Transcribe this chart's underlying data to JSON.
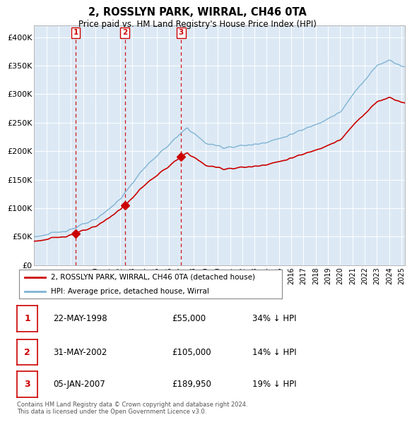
{
  "title": "2, ROSSLYN PARK, WIRRAL, CH46 0TA",
  "subtitle": "Price paid vs. HM Land Registry's House Price Index (HPI)",
  "ylabel_ticks": [
    "£0",
    "£50K",
    "£100K",
    "£150K",
    "£200K",
    "£250K",
    "£300K",
    "£350K",
    "£400K"
  ],
  "ytick_values": [
    0,
    50000,
    100000,
    150000,
    200000,
    250000,
    300000,
    350000,
    400000
  ],
  "ylim": [
    0,
    420000
  ],
  "xlim_start": 1995.0,
  "xlim_end": 2025.3,
  "sales": [
    {
      "date_num": 1998.39,
      "price": 55000,
      "label": "1"
    },
    {
      "date_num": 2002.41,
      "price": 105000,
      "label": "2"
    },
    {
      "date_num": 2007.01,
      "price": 189950,
      "label": "3"
    }
  ],
  "legend_line1": "2, ROSSLYN PARK, WIRRAL, CH46 0TA (detached house)",
  "legend_line2": "HPI: Average price, detached house, Wirral",
  "table_rows": [
    {
      "num": "1",
      "date": "22-MAY-1998",
      "price": "£55,000",
      "hpi": "34% ↓ HPI"
    },
    {
      "num": "2",
      "date": "31-MAY-2002",
      "price": "£105,000",
      "hpi": "14% ↓ HPI"
    },
    {
      "num": "3",
      "date": "05-JAN-2007",
      "price": "£189,950",
      "hpi": "19% ↓ HPI"
    }
  ],
  "footer": "Contains HM Land Registry data © Crown copyright and database right 2024.\nThis data is licensed under the Open Government Licence v3.0.",
  "sale_color": "#cc0000",
  "hpi_color": "#7fb3d3",
  "vline_color": "#cc0000",
  "background_color": "#ffffff",
  "chart_bg_color": "#dce9f5",
  "grid_color": "#ffffff"
}
